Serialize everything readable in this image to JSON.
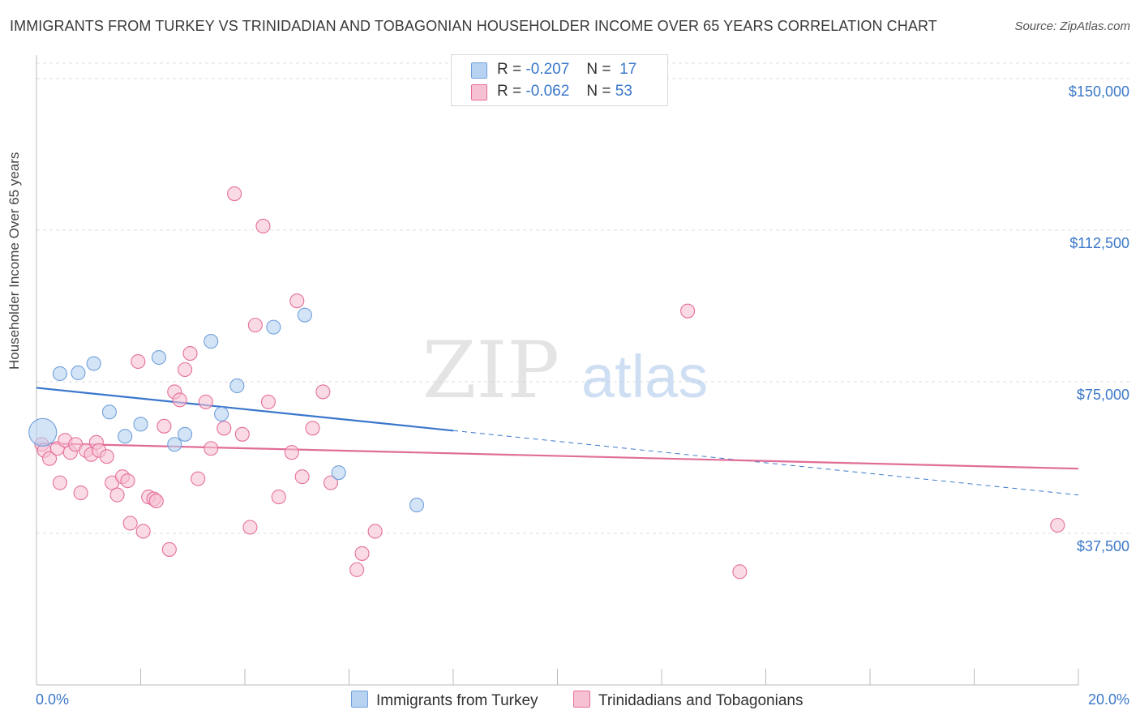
{
  "title": "IMMIGRANTS FROM TURKEY VS TRINIDADIAN AND TOBAGONIAN HOUSEHOLDER INCOME OVER 65 YEARS CORRELATION CHART",
  "source": "Source: ZipAtlas.com",
  "watermark": {
    "zip": "ZIP",
    "atlas": "atlas"
  },
  "colors": {
    "blue": "#6fa0dc",
    "blue_fill": "#b8d2f2",
    "pink": "#e56f9a",
    "pink_fill": "#f6c1d3",
    "tick_text": "#3b78c8",
    "grid": "#dddddd"
  },
  "legend_top": [
    {
      "r_label": "R =",
      "r_value": "-0.207",
      "n_label": "N =",
      "n_value": "17"
    },
    {
      "r_label": "R =",
      "r_value": "-0.062",
      "n_label": "N =",
      "n_value": "53"
    }
  ],
  "legend_bottom": [
    "Immigrants from Turkey",
    "Trinidadians and Tobagonians"
  ],
  "chart_data": {
    "type": "scatter",
    "title": "IMMIGRANTS FROM TURKEY VS TRINIDADIAN AND TOBAGONIAN HOUSEHOLDER INCOME OVER 65 YEARS CORRELATION CHART",
    "xlabel": "",
    "ylabel": "Householder Income Over 65 years",
    "xlim": [
      0,
      20
    ],
    "ylim": [
      0,
      157000
    ],
    "x_tick_labels": [
      "0.0%",
      "20.0%"
    ],
    "y_ticks": [
      37500,
      75000,
      112500,
      150000
    ],
    "y_tick_labels": [
      "$37,500",
      "$75,000",
      "$112,500",
      "$150,000"
    ],
    "grid": true,
    "series": [
      {
        "name": "Immigrants from Turkey",
        "r": -0.207,
        "n": 17,
        "trend": {
          "x0": 0,
          "y0": 73500,
          "x1": 20,
          "y1": 47000,
          "solid_until_x": 8
        },
        "points": [
          {
            "x": 0.12,
            "y": 62500,
            "big": true
          },
          {
            "x": 0.45,
            "y": 77000
          },
          {
            "x": 0.8,
            "y": 77200
          },
          {
            "x": 1.1,
            "y": 79500
          },
          {
            "x": 1.4,
            "y": 67500
          },
          {
            "x": 1.7,
            "y": 61500
          },
          {
            "x": 2.0,
            "y": 64500
          },
          {
            "x": 2.35,
            "y": 81000
          },
          {
            "x": 2.65,
            "y": 59500
          },
          {
            "x": 2.85,
            "y": 62000
          },
          {
            "x": 3.35,
            "y": 85000
          },
          {
            "x": 3.55,
            "y": 67000
          },
          {
            "x": 3.85,
            "y": 74000
          },
          {
            "x": 4.55,
            "y": 88500
          },
          {
            "x": 5.15,
            "y": 91500
          },
          {
            "x": 5.8,
            "y": 52500
          },
          {
            "x": 7.3,
            "y": 44500
          }
        ]
      },
      {
        "name": "Trinidadians and Tobagonians",
        "r": -0.062,
        "n": 53,
        "trend": {
          "x0": 0,
          "y0": 59800,
          "x1": 20,
          "y1": 53500
        },
        "points": [
          {
            "x": 0.1,
            "y": 59500
          },
          {
            "x": 0.15,
            "y": 58000
          },
          {
            "x": 0.25,
            "y": 56000
          },
          {
            "x": 0.4,
            "y": 58500
          },
          {
            "x": 0.45,
            "y": 50000
          },
          {
            "x": 0.55,
            "y": 60500
          },
          {
            "x": 0.65,
            "y": 57500
          },
          {
            "x": 0.75,
            "y": 59500
          },
          {
            "x": 0.85,
            "y": 47500
          },
          {
            "x": 0.95,
            "y": 58000
          },
          {
            "x": 1.05,
            "y": 57000
          },
          {
            "x": 1.15,
            "y": 60000
          },
          {
            "x": 1.2,
            "y": 58000
          },
          {
            "x": 1.35,
            "y": 56500
          },
          {
            "x": 1.45,
            "y": 50000
          },
          {
            "x": 1.55,
            "y": 47000
          },
          {
            "x": 1.65,
            "y": 51500
          },
          {
            "x": 1.75,
            "y": 50500
          },
          {
            "x": 1.8,
            "y": 40000
          },
          {
            "x": 1.95,
            "y": 80000
          },
          {
            "x": 2.05,
            "y": 38000
          },
          {
            "x": 2.15,
            "y": 46500
          },
          {
            "x": 2.25,
            "y": 46000
          },
          {
            "x": 2.3,
            "y": 45500
          },
          {
            "x": 2.45,
            "y": 64000
          },
          {
            "x": 2.55,
            "y": 33500
          },
          {
            "x": 2.65,
            "y": 72500
          },
          {
            "x": 2.75,
            "y": 70500
          },
          {
            "x": 2.85,
            "y": 78000
          },
          {
            "x": 2.95,
            "y": 82000
          },
          {
            "x": 3.1,
            "y": 51000
          },
          {
            "x": 3.25,
            "y": 70000
          },
          {
            "x": 3.35,
            "y": 58500
          },
          {
            "x": 3.6,
            "y": 63500
          },
          {
            "x": 3.8,
            "y": 121500
          },
          {
            "x": 3.95,
            "y": 62000
          },
          {
            "x": 4.1,
            "y": 39000
          },
          {
            "x": 4.2,
            "y": 89000
          },
          {
            "x": 4.35,
            "y": 113500
          },
          {
            "x": 4.45,
            "y": 70000
          },
          {
            "x": 4.65,
            "y": 46500
          },
          {
            "x": 4.9,
            "y": 57500
          },
          {
            "x": 5.0,
            "y": 95000
          },
          {
            "x": 5.1,
            "y": 51500
          },
          {
            "x": 5.3,
            "y": 63500
          },
          {
            "x": 5.5,
            "y": 72500
          },
          {
            "x": 5.65,
            "y": 50000
          },
          {
            "x": 6.15,
            "y": 28500
          },
          {
            "x": 6.25,
            "y": 32500
          },
          {
            "x": 6.5,
            "y": 38000
          },
          {
            "x": 12.5,
            "y": 92500
          },
          {
            "x": 13.5,
            "y": 28000
          },
          {
            "x": 19.6,
            "y": 39500
          }
        ]
      }
    ]
  }
}
